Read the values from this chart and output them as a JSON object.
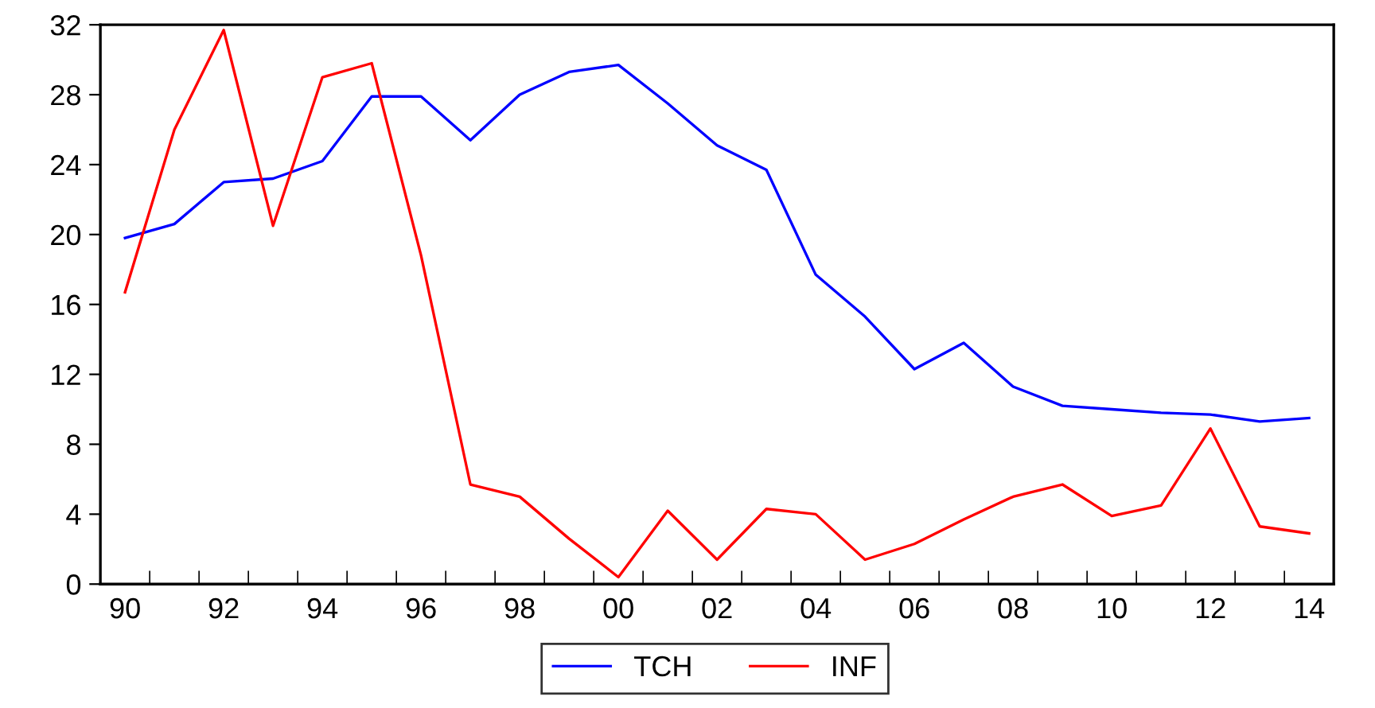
{
  "chart_data": {
    "type": "line",
    "categories": [
      "90",
      null,
      "92",
      null,
      "94",
      null,
      "96",
      null,
      "98",
      null,
      "00",
      null,
      "02",
      null,
      "04",
      null,
      "06",
      null,
      "08",
      null,
      "10",
      null,
      "12",
      null,
      "14"
    ],
    "series": [
      {
        "name": "TCH",
        "color": "#0000ff",
        "values": [
          19.8,
          20.6,
          23.0,
          23.2,
          24.2,
          27.9,
          27.9,
          25.4,
          28.0,
          29.3,
          29.7,
          27.5,
          25.1,
          23.7,
          17.7,
          15.3,
          12.3,
          13.8,
          11.3,
          10.2,
          10.0,
          9.8,
          9.7,
          9.3,
          9.5
        ]
      },
      {
        "name": "INF",
        "color": "#ff0000",
        "values": [
          16.7,
          26.0,
          31.7,
          20.5,
          29.0,
          29.8,
          18.8,
          5.7,
          5.0,
          2.6,
          0.4,
          4.2,
          1.4,
          4.3,
          4.0,
          1.4,
          2.3,
          3.7,
          5.0,
          5.7,
          3.9,
          4.5,
          8.9,
          3.3,
          2.9
        ]
      }
    ],
    "ylim": [
      0,
      32
    ],
    "yticks": [
      0,
      4,
      8,
      12,
      16,
      20,
      24,
      28,
      32
    ],
    "grid": false,
    "legend": "bottom",
    "marker": "none",
    "line_style": "solid"
  }
}
